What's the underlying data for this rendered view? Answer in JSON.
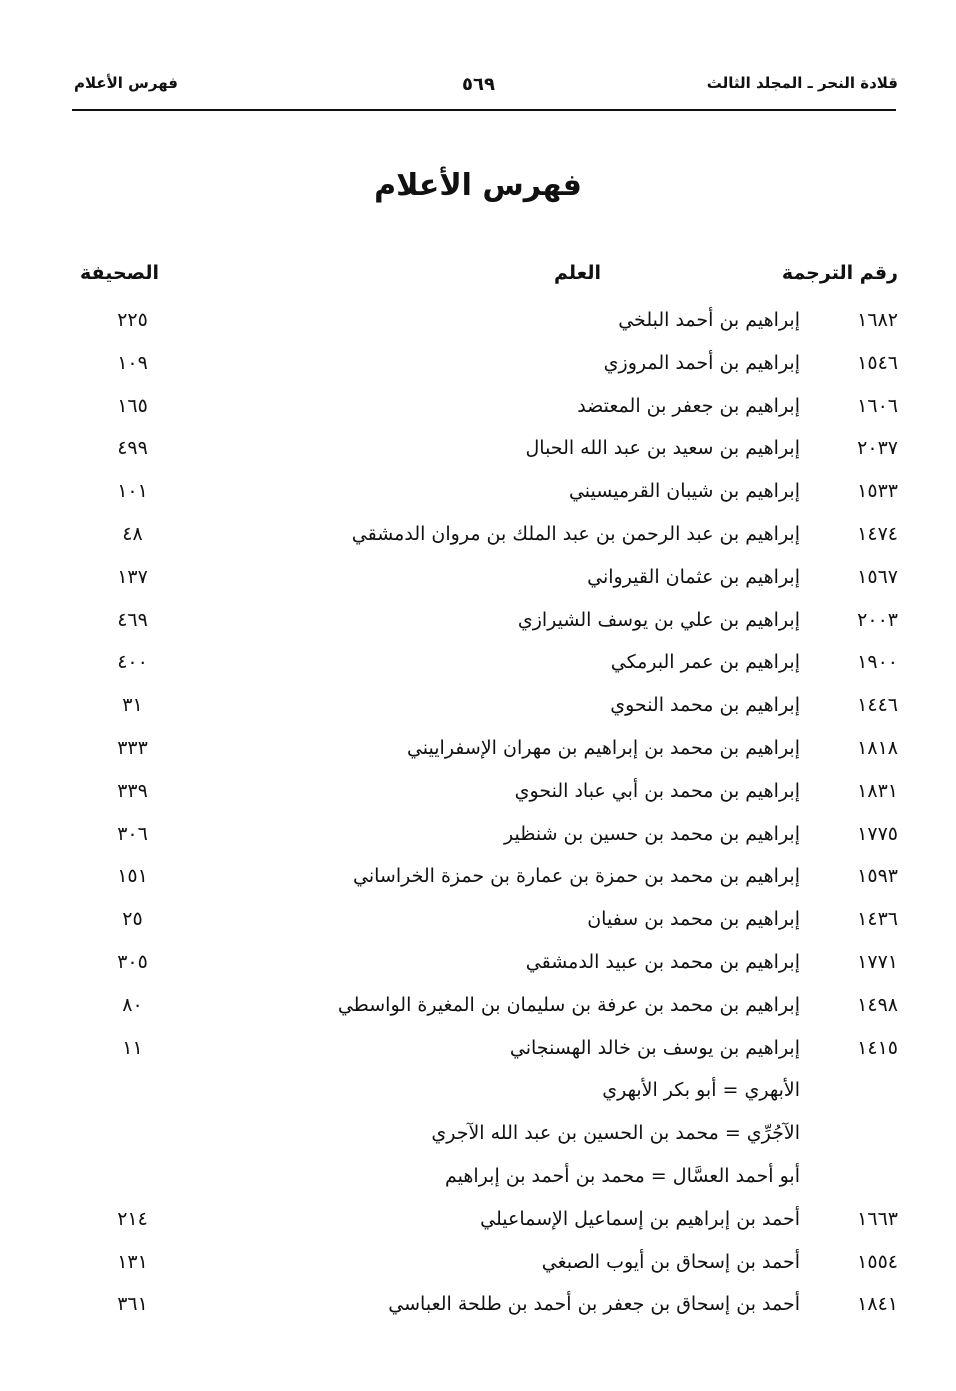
{
  "header": {
    "book": "قلادة النحر ـ المجلد الثالث",
    "page_number": "٥٦٩",
    "section": "فهرس الأعلام"
  },
  "title": "فهرس الأعلام",
  "columns": {
    "number": "رقم الترجمة",
    "name": "العلم",
    "page": "الصحيفة"
  },
  "rows": [
    {
      "num": "١٦٨٢",
      "name": "إبراهيم بن أحمد البلخي",
      "page": "٢٢٥"
    },
    {
      "num": "١٥٤٦",
      "name": "إبراهيم بن أحمد المروزي",
      "page": "١٠٩"
    },
    {
      "num": "١٦٠٦",
      "name": "إبراهيم بن جعفر بن المعتضد",
      "page": "١٦٥"
    },
    {
      "num": "٢٠٣٧",
      "name": "إبراهيم بن سعيد بن عبد الله الحبال",
      "page": "٤٩٩"
    },
    {
      "num": "١٥٣٣",
      "name": "إبراهيم بن شيبان القرميسيني",
      "page": "١٠١"
    },
    {
      "num": "١٤٧٤",
      "name": "إبراهيم بن عبد الرحمن بن عبد الملك بن مروان الدمشقي",
      "page": "٤٨"
    },
    {
      "num": "١٥٦٧",
      "name": "إبراهيم بن عثمان القيرواني",
      "page": "١٣٧"
    },
    {
      "num": "٢٠٠٣",
      "name": "إبراهيم بن علي بن يوسف الشيرازي",
      "page": "٤٦٩"
    },
    {
      "num": "١٩٠٠",
      "name": "إبراهيم بن عمر البرمكي",
      "page": "٤٠٠"
    },
    {
      "num": "١٤٤٦",
      "name": "إبراهيم بن محمد النحوي",
      "page": "٣١"
    },
    {
      "num": "١٨١٨",
      "name": "إبراهيم بن محمد بن إبراهيم بن مهران الإسفراييني",
      "page": "٣٣٣"
    },
    {
      "num": "١٨٣١",
      "name": "إبراهيم بن محمد بن أبي عباد النحوي",
      "page": "٣٣٩"
    },
    {
      "num": "١٧٧٥",
      "name": "إبراهيم بن محمد بن حسين بن شنظير",
      "page": "٣٠٦"
    },
    {
      "num": "١٥٩٣",
      "name": "إبراهيم بن محمد بن حمزة بن عمارة بن حمزة الخراساني",
      "page": "١٥١"
    },
    {
      "num": "١٤٣٦",
      "name": "إبراهيم بن محمد بن سفيان",
      "page": "٢٥"
    },
    {
      "num": "١٧٧١",
      "name": "إبراهيم بن محمد بن عبيد الدمشقي",
      "page": "٣٠٥"
    },
    {
      "num": "١٤٩٨",
      "name": "إبراهيم بن محمد بن عرفة بن سليمان بن المغيرة الواسطي",
      "page": "٨٠"
    },
    {
      "num": "١٤١٥",
      "name": "إبراهيم بن يوسف بن خالد الهسنجاني",
      "page": "١١"
    },
    {
      "num": "",
      "name": "الأبهري = أبو بكر الأبهري",
      "page": ""
    },
    {
      "num": "",
      "name": "الآجُرِّي = محمد بن الحسين بن عبد الله الآجري",
      "page": ""
    },
    {
      "num": "",
      "name": "أبو أحمد العسَّال = محمد بن أحمد بن إبراهيم",
      "page": ""
    },
    {
      "num": "١٦٦٣",
      "name": "أحمد بن إبراهيم بن إسماعيل الإسماعيلي",
      "page": "٢١٤"
    },
    {
      "num": "١٥٥٤",
      "name": "أحمد بن إسحاق بن أيوب الصبغي",
      "page": "١٣١"
    },
    {
      "num": "١٨٤١",
      "name": "أحمد بن إسحاق بن جعفر بن أحمد بن طلحة العباسي",
      "page": "٣٦١"
    }
  ]
}
